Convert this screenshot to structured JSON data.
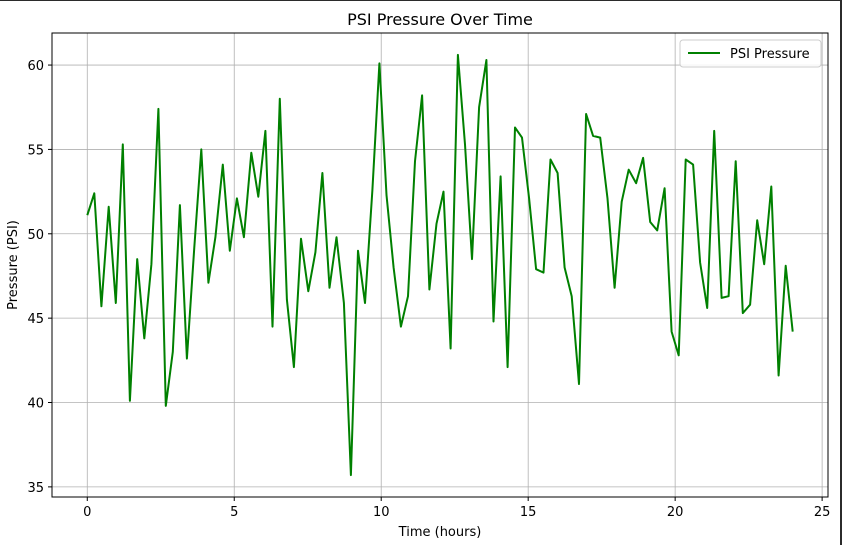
{
  "chart_data": {
    "type": "line",
    "title": "PSI Pressure Over Time",
    "xlabel": "Time (hours)",
    "ylabel": "Pressure (PSI)",
    "xlim": [
      -1.2,
      25.2
    ],
    "ylim": [
      34.4,
      61.9
    ],
    "xticks": [
      0,
      5,
      10,
      15,
      20,
      25
    ],
    "yticks": [
      35,
      40,
      45,
      50,
      55,
      60
    ],
    "grid": true,
    "legend_position": "top-right",
    "series": [
      {
        "name": "PSI Pressure",
        "color": "#008000",
        "x": [
          0,
          0.24,
          0.48,
          0.73,
          0.97,
          1.21,
          1.45,
          1.7,
          1.94,
          2.18,
          2.42,
          2.67,
          2.91,
          3.15,
          3.39,
          3.64,
          3.88,
          4.12,
          4.36,
          4.61,
          4.85,
          5.09,
          5.33,
          5.58,
          5.82,
          6.06,
          6.3,
          6.55,
          6.79,
          7.03,
          7.27,
          7.52,
          7.76,
          8,
          8.24,
          8.48,
          8.73,
          8.97,
          9.21,
          9.45,
          9.7,
          9.94,
          10.18,
          10.42,
          10.67,
          10.91,
          11.15,
          11.39,
          11.64,
          11.88,
          12.12,
          12.36,
          12.61,
          12.85,
          13.09,
          13.33,
          13.58,
          13.82,
          14.06,
          14.3,
          14.55,
          14.79,
          15.03,
          15.27,
          15.52,
          15.76,
          16,
          16.24,
          16.48,
          16.73,
          16.97,
          17.21,
          17.45,
          17.7,
          17.94,
          18.18,
          18.42,
          18.67,
          18.91,
          19.15,
          19.39,
          19.64,
          19.88,
          20.12,
          20.36,
          20.61,
          20.85,
          21.09,
          21.33,
          21.58,
          21.82,
          22.06,
          22.3,
          22.55,
          22.79,
          23.03,
          23.27,
          23.52,
          23.76,
          24
        ],
        "values": [
          51.1,
          52.4,
          45.7,
          51.6,
          45.9,
          55.3,
          40.1,
          48.5,
          43.8,
          48.2,
          57.4,
          39.8,
          43.0,
          51.7,
          42.6,
          49.2,
          55.0,
          47.1,
          49.8,
          54.1,
          49.0,
          52.1,
          49.8,
          54.8,
          52.2,
          56.1,
          44.5,
          58.0,
          46.1,
          42.1,
          49.7,
          46.6,
          48.9,
          53.6,
          46.8,
          49.8,
          45.9,
          35.7,
          49.0,
          45.9,
          52.6,
          60.1,
          52.3,
          48.0,
          44.5,
          46.3,
          54.3,
          58.2,
          46.7,
          50.6,
          52.5,
          43.2,
          60.6,
          55.3,
          48.5,
          57.5,
          60.3,
          44.8,
          53.4,
          42.1,
          56.3,
          55.7,
          52.1,
          47.9,
          47.7,
          54.4,
          53.6,
          48.0,
          46.3,
          41.1,
          57.1,
          55.8,
          55.7,
          52.1,
          46.8,
          51.9,
          53.8,
          53.0,
          54.5,
          50.7,
          50.2,
          52.7,
          44.2,
          42.8,
          54.4,
          54.1,
          48.3,
          45.6,
          56.1,
          46.2,
          46.3,
          54.3,
          45.3,
          45.8,
          50.8,
          48.2,
          52.8,
          41.6,
          48.1,
          44.2
        ]
      }
    ]
  }
}
